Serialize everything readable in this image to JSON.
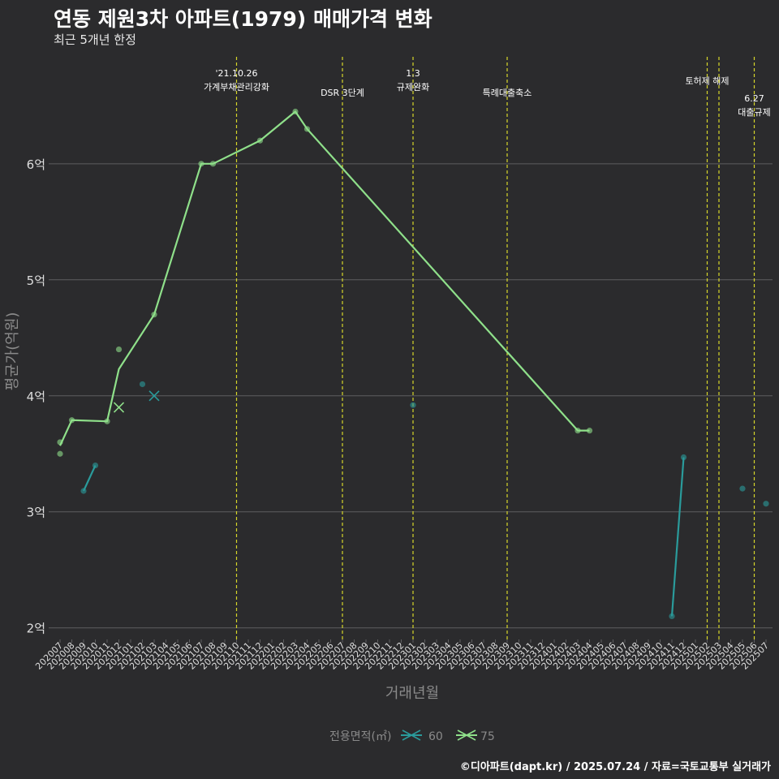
{
  "colors": {
    "background": "#2b2b2d",
    "grid": "#5e5e60",
    "event_line": "#d6d62a",
    "series_60": "#2a9b9b",
    "series_75": "#8fe08a",
    "axis_text": "#dddddd",
    "label_text": "#8a8a8a"
  },
  "chart_data": {
    "type": "line",
    "title": "연동 제원3차 아파트(1979) 매매가격 변화",
    "subtitle": "최근 5개년 한정",
    "xlabel": "거래년월",
    "ylabel": "평균가(억원)",
    "caption": "©디아파트(dapt.kr) / 2025.07.24 / 자료=국토교통부 실거래가",
    "legend_title": "전용면적(㎡)",
    "legend_position": "bottom",
    "ylim": [
      1.9,
      6.95
    ],
    "yticks": [
      {
        "value": 2,
        "label": "2억"
      },
      {
        "value": 3,
        "label": "3억"
      },
      {
        "value": 4,
        "label": "4억"
      },
      {
        "value": 5,
        "label": "5억"
      },
      {
        "value": 6,
        "label": "6억"
      }
    ],
    "x": [
      "202007",
      "202008",
      "202009",
      "202010",
      "202011",
      "202012",
      "202101",
      "202102",
      "202103",
      "202104",
      "202105",
      "202106",
      "202107",
      "202108",
      "202109",
      "202110",
      "202111",
      "202112",
      "202201",
      "202202",
      "202203",
      "202204",
      "202205",
      "202206",
      "202207",
      "202208",
      "202209",
      "202210",
      "202211",
      "202212",
      "202301",
      "202302",
      "202303",
      "202304",
      "202305",
      "202306",
      "202307",
      "202308",
      "202309",
      "202310",
      "202311",
      "202312",
      "202401",
      "202402",
      "202403",
      "202404",
      "202405",
      "202406",
      "202407",
      "202408",
      "202409",
      "202410",
      "202411",
      "202412",
      "202501",
      "202502",
      "202503",
      "202504",
      "202505",
      "202506",
      "202507"
    ],
    "events": [
      {
        "x": "202110",
        "lines": [
          "'21.10.26",
          "가계부채관리강화"
        ],
        "level": 0
      },
      {
        "x": "202207",
        "lines": [
          "DSR 3단계"
        ],
        "level": 1
      },
      {
        "x": "202301",
        "lines": [
          "1.3",
          "규제완화"
        ],
        "level": 0
      },
      {
        "x": "202309",
        "lines": [
          "특례대출축소"
        ],
        "level": 1
      },
      {
        "x": "202502",
        "lines": [
          "토허제 해제"
        ],
        "level": 0.4
      },
      {
        "x": "202503",
        "lines": [],
        "level": 0
      },
      {
        "x": "202506",
        "lines": [
          "6.27",
          "대출규제"
        ],
        "level": 1.3
      }
    ],
    "series": [
      {
        "name": "60",
        "color_key": "series_60",
        "line_segments": [
          [
            [
              "202009",
              3.18
            ],
            [
              "202010",
              3.4
            ]
          ],
          [
            [
              "202411",
              2.1
            ],
            [
              "202412",
              3.47
            ]
          ]
        ],
        "points": [
          [
            "202009",
            3.18
          ],
          [
            "202010",
            3.4
          ],
          [
            "202102",
            4.1
          ],
          [
            "202301",
            3.92
          ],
          [
            "202411",
            2.1
          ],
          [
            "202412",
            3.47
          ],
          [
            "202505",
            3.2
          ],
          [
            "202507",
            3.07
          ]
        ],
        "cross_points": [
          [
            "202103",
            4.0
          ]
        ]
      },
      {
        "name": "75",
        "color_key": "series_75",
        "line_segments": [
          [
            [
              "202007",
              3.57
            ],
            [
              "202008",
              3.79
            ],
            [
              "202011",
              3.78
            ],
            [
              "202012",
              4.23
            ],
            [
              "202103",
              4.7
            ],
            [
              "202107",
              6.0
            ],
            [
              "202108",
              6.0
            ],
            [
              "202112",
              6.2
            ],
            [
              "202203",
              6.45
            ],
            [
              "202204",
              6.3
            ],
            [
              "202403",
              3.7
            ],
            [
              "202404",
              3.7
            ]
          ]
        ],
        "points": [
          [
            "202007",
            3.6
          ],
          [
            "202007",
            3.5
          ],
          [
            "202008",
            3.79
          ],
          [
            "202011",
            3.78
          ],
          [
            "202012",
            4.4
          ],
          [
            "202103",
            4.7
          ],
          [
            "202107",
            6.0
          ],
          [
            "202108",
            6.0
          ],
          [
            "202112",
            6.2
          ],
          [
            "202203",
            6.45
          ],
          [
            "202204",
            6.3
          ],
          [
            "202403",
            3.7
          ],
          [
            "202404",
            3.7
          ]
        ],
        "cross_points": [
          [
            "202012",
            3.9
          ]
        ]
      }
    ]
  }
}
